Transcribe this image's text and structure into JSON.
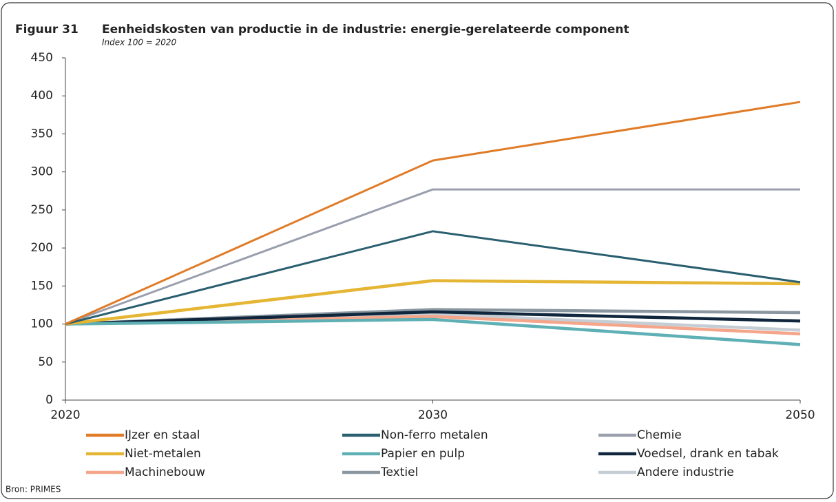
{
  "chart_data": {
    "type": "line",
    "figure": "Figuur 31",
    "title": "Eenheidskosten van productie in de industrie: energie-gerelateerde component",
    "subtitle": "Index 100 = 2020",
    "source": "Bron: PRIMES",
    "categories": [
      "2020",
      "2030",
      "2050"
    ],
    "ylim": [
      0,
      450
    ],
    "yticks": [
      0,
      50,
      100,
      150,
      200,
      250,
      300,
      350,
      400,
      450
    ],
    "grid": false,
    "series": [
      {
        "name": "IJzer en staal",
        "color": "#e07b28",
        "values": [
          100,
          315,
          392
        ]
      },
      {
        "name": "Non-ferro metalen",
        "color": "#2a5f6f",
        "values": [
          100,
          222,
          155
        ]
      },
      {
        "name": "Chemie",
        "color": "#9a9fae",
        "values": [
          100,
          277,
          277
        ]
      },
      {
        "name": "Niet-metalen",
        "color": "#e5b534",
        "values": [
          100,
          157,
          153
        ]
      },
      {
        "name": "Papier en pulp",
        "color": "#5fb0b5",
        "values": [
          100,
          106,
          73
        ]
      },
      {
        "name": "Voedsel, drank en tabak",
        "color": "#10263d",
        "values": [
          100,
          116,
          104
        ]
      },
      {
        "name": "Machinebouw",
        "color": "#f4a58a",
        "values": [
          100,
          110,
          87
        ]
      },
      {
        "name": "Textiel",
        "color": "#8a97a0",
        "values": [
          100,
          119,
          115
        ]
      },
      {
        "name": "Andere industrie",
        "color": "#c5cdd4",
        "values": [
          100,
          113,
          92
        ]
      }
    ]
  }
}
